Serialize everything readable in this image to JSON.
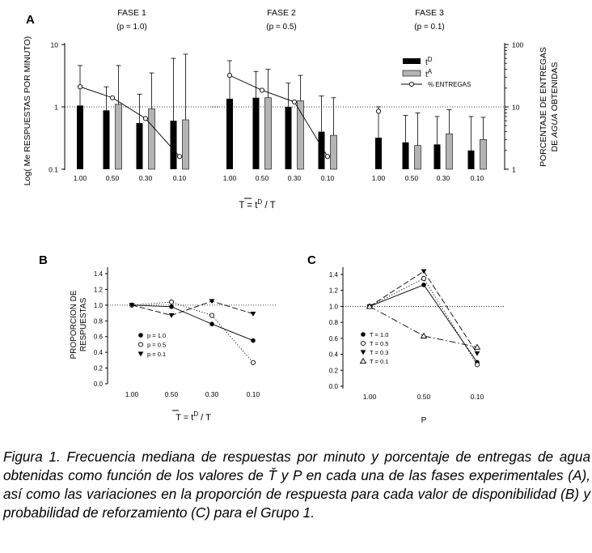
{
  "chart_data": [
    {
      "id": "A",
      "type": "bar",
      "panel_label": "A",
      "ylabel_left": "Log( Me RESPUESTAS POR MINUTO)",
      "ylabel_right_1": "PORCENTAJE DE ENTREGAS",
      "ylabel_right_2_pre": "DE ",
      "ylabel_right_2_em": "AGUA",
      "ylabel_right_2_post": " OBTENIDAS",
      "xlabel": "T = tD / T",
      "x_axis_label_parts": [
        "T",
        " = t",
        "D",
        " / T"
      ],
      "left_axis": {
        "scale": "log",
        "range": [
          0.1,
          10
        ],
        "ticks": [
          "0.1",
          "1",
          "10"
        ]
      },
      "right_axis": {
        "scale": "log",
        "range": [
          1,
          100
        ],
        "ticks": [
          "1",
          "10",
          "100"
        ]
      },
      "reference_line_y": 1,
      "categories": [
        "1.00",
        "0.50",
        "0.30",
        "0.10"
      ],
      "legend": {
        "tD_label": "tD",
        "tA_label": "tA",
        "pct_label": "% ENTREGAS",
        "tD_parts": [
          "t",
          "D"
        ],
        "tA_parts": [
          "t",
          "A"
        ]
      },
      "phases": [
        {
          "title": "FASE 1",
          "subtitle": "(p = 1.0)",
          "tD": [
            1.05,
            0.88,
            0.55,
            0.6
          ],
          "tD_err": [
            4.6,
            2.1,
            1.6,
            6.0
          ],
          "tA": [
            null,
            1.1,
            0.93,
            0.62
          ],
          "tA_err": [
            null,
            4.6,
            3.5,
            7.0
          ],
          "pct_entregas": [
            21,
            14,
            6.5,
            1.6
          ]
        },
        {
          "title": "FASE 2",
          "subtitle": "(p = 0.5)",
          "tD": [
            1.35,
            1.4,
            1.0,
            0.4
          ],
          "tD_err": [
            5.5,
            3.7,
            2.4,
            1.5
          ],
          "tA": [
            null,
            1.4,
            1.25,
            0.35
          ],
          "tA_err": [
            null,
            4.0,
            3.2,
            1.4
          ],
          "pct_entregas": [
            32,
            18.5,
            12,
            1.6
          ]
        },
        {
          "title": "FASE 3",
          "subtitle": "(p = 0.1)",
          "tD": [
            0.32,
            0.27,
            0.25,
            0.2
          ],
          "tD_err": [
            1.0,
            0.73,
            0.7,
            0.7
          ],
          "tA": [
            null,
            0.24,
            0.37,
            0.3
          ],
          "tA_err": [
            null,
            0.8,
            0.9,
            0.68
          ],
          "pct_entregas": [
            8.5,
            null,
            null,
            null
          ]
        }
      ]
    },
    {
      "id": "B",
      "type": "line",
      "panel_label": "B",
      "ylabel_1": "PROPORCION DE",
      "ylabel_2": "RESPUESTAS",
      "x_axis_label_parts": [
        "T",
        " = t",
        "D",
        " / T"
      ],
      "categories": [
        "1.00",
        "0.50",
        "0.30",
        "0.10"
      ],
      "ylim": [
        0.0,
        1.4
      ],
      "yticks": [
        "0.0",
        "0.2",
        "0.4",
        "0.6",
        "0.8",
        "1.0",
        "1.2",
        "1.4"
      ],
      "reference_line_y": 1.0,
      "series": [
        {
          "name": "p = 1.0",
          "marker": "filled-circle",
          "dash": "solid",
          "values": [
            1.0,
            0.98,
            0.76,
            0.55
          ]
        },
        {
          "name": "p = 0.5",
          "marker": "open-circle",
          "dash": "dotted",
          "values": [
            1.0,
            1.04,
            0.87,
            0.27
          ]
        },
        {
          "name": "p = 0.1",
          "marker": "filled-triangle-down",
          "dash": "dashed",
          "values": [
            1.0,
            0.87,
            1.05,
            0.89
          ]
        }
      ]
    },
    {
      "id": "C",
      "type": "line",
      "panel_label": "C",
      "xlabel": "P",
      "categories": [
        "1.00",
        "0.50",
        "0.10"
      ],
      "ylim": [
        0.0,
        1.4
      ],
      "yticks": [
        "0.0",
        "0.2",
        "0.4",
        "0.6",
        "0.8",
        "1.0",
        "1.2",
        "1.4"
      ],
      "reference_line_y": 1.0,
      "series": [
        {
          "name": "T = 1.0",
          "marker": "filled-circle",
          "dash": "solid",
          "values": [
            1.0,
            1.27,
            0.3
          ]
        },
        {
          "name": "T = 0.5",
          "marker": "open-circle",
          "dash": "dotted",
          "values": [
            1.0,
            1.35,
            0.27
          ]
        },
        {
          "name": "T = 0.3",
          "marker": "filled-triangle-down",
          "dash": "dashed",
          "values": [
            1.0,
            1.44,
            0.41
          ]
        },
        {
          "name": "T = 0.1",
          "marker": "open-triangle-up",
          "dash": "dashdot",
          "values": [
            1.0,
            0.63,
            0.49
          ]
        }
      ]
    }
  ],
  "caption": "Figura 1. Frecuencia mediana de respuestas por minuto y porcentaje de entregas de agua obtenidas como función de los valores de Ť y P en cada una de las fases experimentales (A), así como las variaciones en la proporción de respuesta para cada valor de disponibilidad (B) y probabilidad de reforzamiento (C) para el Grupo 1."
}
